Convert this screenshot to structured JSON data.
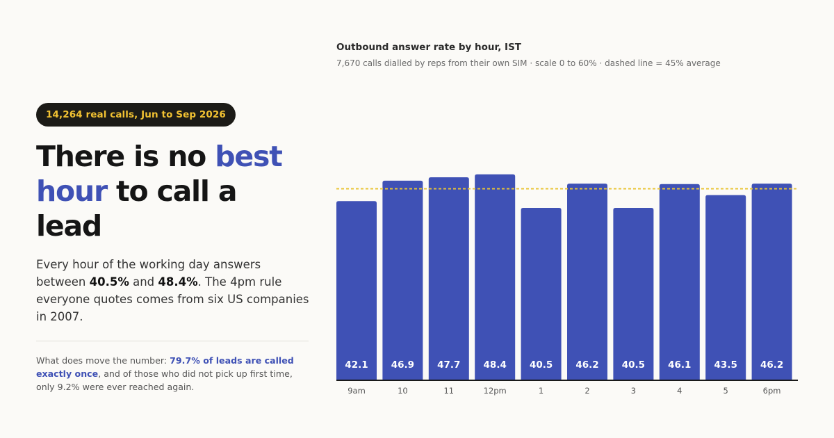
{
  "badge": "14,264 real calls, Jun to Sep 2026",
  "headline": {
    "p1": "There is no ",
    "accent1": "best",
    "accent2": "hour",
    "p2": " to call a lead"
  },
  "lede": {
    "t1": "Every hour of the working day answers between ",
    "v1": "40.5%",
    "t2": " and ",
    "v2": "48.4%",
    "t3": ". The 4pm rule everyone quotes comes from six US companies in 2007."
  },
  "note": {
    "t1": "What does move the number: ",
    "highlight": "79.7% of leads are called exactly once",
    "t2": ", and of those who did not pick up first time, only 9.2% were ever reached again."
  },
  "chart_data": {
    "type": "bar",
    "title": "Outbound answer rate by hour, IST",
    "subtitle": "7,670 calls dialled by reps from their own SIM · scale 0 to 60% · dashed line = 45% average",
    "categories": [
      "9am",
      "10",
      "11",
      "12pm",
      "1",
      "2",
      "3",
      "4",
      "5",
      "6pm"
    ],
    "values": [
      42.1,
      46.9,
      47.7,
      48.4,
      40.5,
      46.2,
      40.5,
      46.1,
      43.5,
      46.2
    ],
    "ylim": [
      0,
      60
    ],
    "reference_line": 45,
    "grid": false,
    "colors": {
      "bar": "#3f51b5",
      "reference": "#e8c435",
      "axis": "#1a1a1a",
      "label": "#ffffff"
    }
  }
}
